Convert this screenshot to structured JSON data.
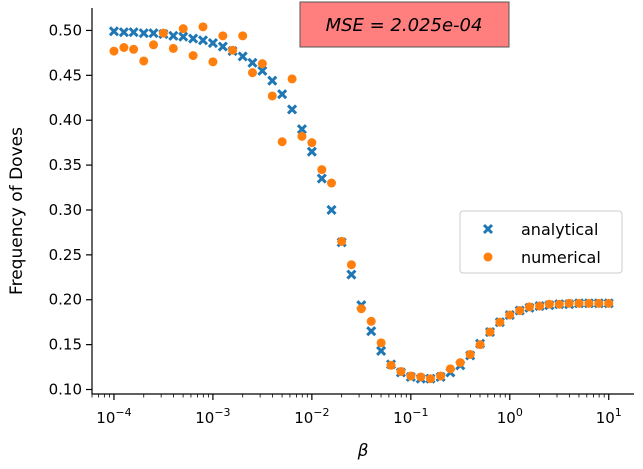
{
  "chart_data": {
    "type": "scatter",
    "xscale": "log",
    "xlabel": "β",
    "ylabel": "Frequency of Doves",
    "xlim": [
      6e-05,
      18
    ],
    "ylim": [
      0.095,
      0.525
    ],
    "x_ticks": [
      {
        "value": 0.0001,
        "base": "10",
        "exp": "−4"
      },
      {
        "value": 0.001,
        "base": "10",
        "exp": "−3"
      },
      {
        "value": 0.01,
        "base": "10",
        "exp": "−2"
      },
      {
        "value": 0.1,
        "base": "10",
        "exp": "−1"
      },
      {
        "value": 1,
        "base": "10",
        "exp": "0"
      },
      {
        "value": 10,
        "base": "10",
        "exp": "1"
      }
    ],
    "y_ticks": [
      "0.10",
      "0.15",
      "0.20",
      "0.25",
      "0.30",
      "0.35",
      "0.40",
      "0.45",
      "0.50"
    ],
    "y_tick_values": [
      0.1,
      0.15,
      0.2,
      0.25,
      0.3,
      0.35,
      0.4,
      0.45,
      0.5
    ],
    "annotation": "MSE = 2.025e-04",
    "annotation_color": "#ff7f7f",
    "grid": false,
    "legend_position": "center-right",
    "series": [
      {
        "name": "analytical",
        "marker": "x",
        "color": "#1f77b4",
        "x": [
          0.0001,
          0.000126,
          0.000158,
          0.0002,
          0.000251,
          0.000316,
          0.000398,
          0.000501,
          0.000631,
          0.000794,
          0.001,
          0.00126,
          0.00158,
          0.002,
          0.00251,
          0.00316,
          0.00398,
          0.00501,
          0.00631,
          0.00794,
          0.01,
          0.0126,
          0.0158,
          0.02,
          0.0251,
          0.0316,
          0.0398,
          0.0501,
          0.0631,
          0.0794,
          0.1,
          0.126,
          0.158,
          0.2,
          0.251,
          0.316,
          0.398,
          0.501,
          0.631,
          0.794,
          1,
          1.26,
          1.58,
          2,
          2.51,
          3.16,
          3.98,
          5.01,
          6.31,
          7.94,
          10
        ],
        "y": [
          0.499,
          0.498,
          0.498,
          0.497,
          0.497,
          0.496,
          0.494,
          0.493,
          0.491,
          0.489,
          0.486,
          0.482,
          0.477,
          0.471,
          0.464,
          0.455,
          0.444,
          0.429,
          0.412,
          0.39,
          0.365,
          0.335,
          0.3,
          0.264,
          0.228,
          0.194,
          0.165,
          0.143,
          0.128,
          0.119,
          0.114,
          0.112,
          0.112,
          0.114,
          0.119,
          0.127,
          0.138,
          0.151,
          0.164,
          0.175,
          0.183,
          0.188,
          0.191,
          0.193,
          0.194,
          0.195,
          0.195,
          0.196,
          0.196,
          0.196,
          0.196
        ]
      },
      {
        "name": "numerical",
        "marker": "o",
        "color": "#ff7f0e",
        "x": [
          0.0001,
          0.000126,
          0.000158,
          0.0002,
          0.000251,
          0.000316,
          0.000398,
          0.000501,
          0.000631,
          0.000794,
          0.001,
          0.00126,
          0.00158,
          0.002,
          0.00251,
          0.00316,
          0.00398,
          0.00501,
          0.00631,
          0.00794,
          0.01,
          0.0126,
          0.0158,
          0.02,
          0.0251,
          0.0316,
          0.0398,
          0.0501,
          0.0631,
          0.0794,
          0.1,
          0.126,
          0.158,
          0.2,
          0.251,
          0.316,
          0.398,
          0.501,
          0.631,
          0.794,
          1,
          1.26,
          1.58,
          2,
          2.51,
          3.16,
          3.98,
          5.01,
          6.31,
          7.94,
          10
        ],
        "y": [
          0.477,
          0.481,
          0.479,
          0.466,
          0.484,
          0.497,
          0.48,
          0.502,
          0.472,
          0.504,
          0.465,
          0.494,
          0.478,
          0.494,
          0.453,
          0.463,
          0.427,
          0.376,
          0.446,
          0.382,
          0.375,
          0.345,
          0.33,
          0.265,
          0.239,
          0.19,
          0.176,
          0.152,
          0.127,
          0.12,
          0.115,
          0.114,
          0.112,
          0.115,
          0.123,
          0.13,
          0.139,
          0.15,
          0.164,
          0.175,
          0.183,
          0.188,
          0.192,
          0.193,
          0.195,
          0.195,
          0.196,
          0.196,
          0.196,
          0.196,
          0.196
        ]
      }
    ]
  }
}
